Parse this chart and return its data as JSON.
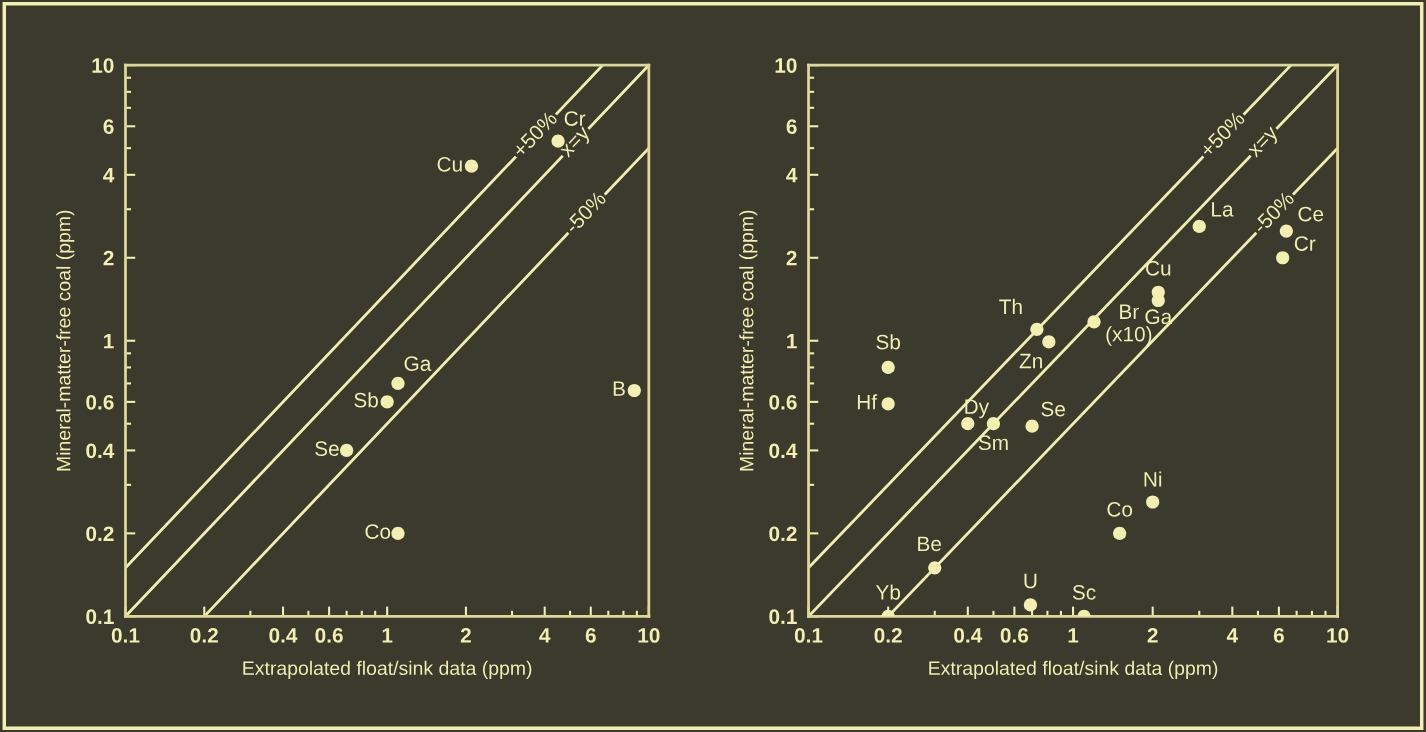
{
  "chart_data": [
    {
      "type": "scatter",
      "xlabel": "Extrapolated float/sink data (ppm)",
      "ylabel": "Mineral-matter-free coal (ppm)",
      "log": "xy",
      "grid": false,
      "legend": false,
      "marker": "circle",
      "xlim": [
        0.1,
        10
      ],
      "ylim": [
        0.1,
        10
      ],
      "xticks": [
        0.1,
        0.2,
        0.4,
        0.6,
        1,
        2,
        4,
        6,
        10
      ],
      "yticks": [
        0.1,
        0.2,
        0.4,
        0.6,
        1,
        2,
        4,
        6,
        10
      ],
      "series": [
        {
          "type": "line",
          "name": "+50%",
          "color": "#f2efb0",
          "line_style": "solid",
          "marker": "none",
          "x": [
            0.1,
            6.667
          ],
          "values": [
            0.15,
            10
          ]
        },
        {
          "type": "line",
          "name": "x=y",
          "color": "#f2efb0",
          "line_style": "solid",
          "marker": "none",
          "x": [
            0.1,
            10
          ],
          "values": [
            0.1,
            10
          ]
        },
        {
          "type": "line",
          "name": "-50%",
          "color": "#f2efb0",
          "line_style": "solid",
          "marker": "none",
          "x": [
            0.2,
            10
          ],
          "values": [
            0.1,
            5
          ]
        },
        {
          "color": "#f2efb0",
          "x": [
            2.1,
            4.5,
            1.1,
            1.0,
            0.7,
            1.1,
            8.8
          ],
          "values": [
            4.3,
            5.3,
            0.7,
            0.6,
            0.4,
            0.2,
            0.66
          ]
        }
      ],
      "annotations": [
        {
          "text": "Cu",
          "x": 2.1,
          "y": 4.3
        },
        {
          "text": "Cr",
          "x": 4.5,
          "y": 5.3
        },
        {
          "text": "Ga",
          "x": 1.1,
          "y": 0.7
        },
        {
          "text": "Sb",
          "x": 1.0,
          "y": 0.6
        },
        {
          "text": "Se",
          "x": 0.7,
          "y": 0.4
        },
        {
          "text": "Co",
          "x": 1.1,
          "y": 0.2
        },
        {
          "text": "B",
          "x": 8.8,
          "y": 0.66
        }
      ]
    },
    {
      "type": "scatter",
      "xlabel": "Extrapolated float/sink data (ppm)",
      "ylabel": "Mineral-matter-free coal (ppm)",
      "log": "xy",
      "grid": false,
      "legend": false,
      "marker": "circle",
      "xlim": [
        0.1,
        10
      ],
      "ylim": [
        0.1,
        10
      ],
      "xticks": [
        0.1,
        0.2,
        0.4,
        0.6,
        1,
        2,
        4,
        6,
        10
      ],
      "yticks": [
        0.1,
        0.2,
        0.4,
        0.6,
        1,
        2,
        4,
        6,
        10
      ],
      "series": [
        {
          "type": "line",
          "name": "+50%",
          "color": "#f2efb0",
          "line_style": "solid",
          "marker": "none",
          "x": [
            0.1,
            6.667
          ],
          "values": [
            0.15,
            10
          ]
        },
        {
          "type": "line",
          "name": "x=y",
          "color": "#f2efb0",
          "line_style": "solid",
          "marker": "none",
          "x": [
            0.1,
            10
          ],
          "values": [
            0.1,
            10
          ]
        },
        {
          "type": "line",
          "name": "-50%",
          "color": "#f2efb0",
          "line_style": "solid",
          "marker": "none",
          "x": [
            0.2,
            10
          ],
          "values": [
            0.1,
            5
          ]
        },
        {
          "color": "#f2efb0",
          "x": [
            0.2,
            0.2,
            0.4,
            0.5,
            0.7,
            0.73,
            0.81,
            1.2,
            2.1,
            2.1,
            3.0,
            6.4,
            6.2,
            2.0,
            1.5,
            0.3,
            0.2,
            0.69,
            1.1
          ],
          "values": [
            0.8,
            0.59,
            0.5,
            0.5,
            0.49,
            1.1,
            0.99,
            1.17,
            1.5,
            1.4,
            2.6,
            2.5,
            2.0,
            0.26,
            0.2,
            0.15,
            0.1,
            0.11,
            0.1
          ]
        }
      ],
      "annotations": [
        {
          "text": "Sb",
          "x": 0.2,
          "y": 0.8
        },
        {
          "text": "Hf",
          "x": 0.2,
          "y": 0.59
        },
        {
          "text": "Dy",
          "x": 0.4,
          "y": 0.5
        },
        {
          "text": "Sm",
          "x": 0.5,
          "y": 0.5
        },
        {
          "text": "Se",
          "x": 0.7,
          "y": 0.49
        },
        {
          "text": "Th",
          "x": 0.73,
          "y": 1.1
        },
        {
          "text": "Zn",
          "x": 0.81,
          "y": 0.99
        },
        {
          "text": "Br\n(x10)",
          "x": 1.2,
          "y": 1.17
        },
        {
          "text": "Cu",
          "x": 2.1,
          "y": 1.5
        },
        {
          "text": "Ga",
          "x": 2.1,
          "y": 1.4
        },
        {
          "text": "La",
          "x": 3.0,
          "y": 2.6
        },
        {
          "text": "Ce",
          "x": 6.4,
          "y": 2.5
        },
        {
          "text": "Cr",
          "x": 6.2,
          "y": 2.0
        },
        {
          "text": "Ni",
          "x": 2.0,
          "y": 0.26
        },
        {
          "text": "Co",
          "x": 1.5,
          "y": 0.2
        },
        {
          "text": "Be",
          "x": 0.3,
          "y": 0.15
        },
        {
          "text": "Yb",
          "x": 0.2,
          "y": 0.1
        },
        {
          "text": "U",
          "x": 0.69,
          "y": 0.11
        },
        {
          "text": "Sc",
          "x": 1.1,
          "y": 0.1
        }
      ]
    }
  ]
}
